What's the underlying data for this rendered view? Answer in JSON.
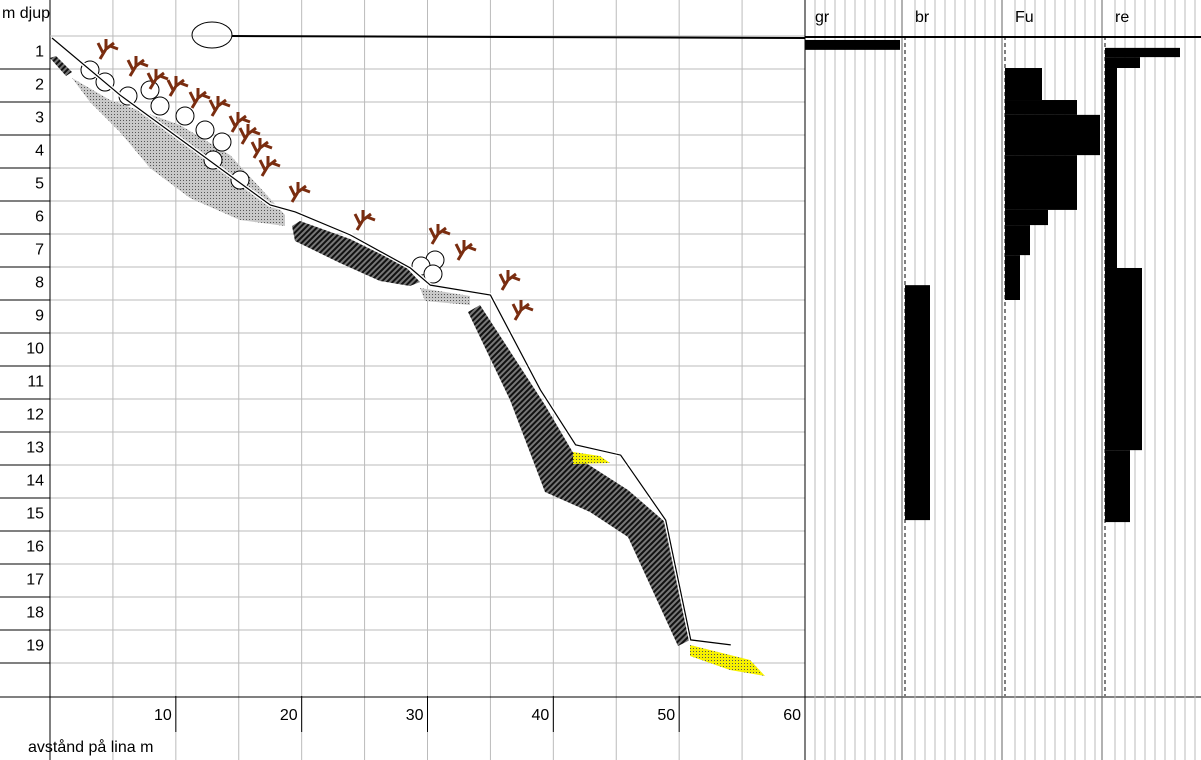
{
  "chart_data": {
    "type": "transect",
    "y_label": "m djup",
    "x_label": "avstånd på lina m",
    "xlim": [
      0,
      60
    ],
    "xticks": [
      10,
      20,
      30,
      40,
      50,
      60
    ],
    "ylim": [
      0,
      20
    ],
    "yticks": [
      1,
      2,
      3,
      4,
      5,
      6,
      7,
      8,
      9,
      10,
      11,
      12,
      13,
      14,
      15,
      16,
      17,
      18,
      19
    ],
    "grid": true,
    "profile": {
      "x": [
        0.16,
        5.57,
        17.5,
        19.49,
        23.87,
        28.64,
        30.23,
        35.0,
        38.98,
        41.77,
        45.35,
        48.93,
        50.92,
        54.1
      ],
      "y": [
        0.06,
        1.79,
        5.12,
        5.33,
        6.03,
        7.03,
        7.55,
        7.85,
        10.73,
        12.39,
        12.7,
        14.67,
        18.3,
        18.45
      ]
    },
    "panels": [
      {
        "name": "gr",
        "xlim": [
          0,
          10
        ],
        "segments": [
          {
            "top": 0.12,
            "bottom": 0.42,
            "value": 9.5
          }
        ]
      },
      {
        "name": "br",
        "xlim": [
          0,
          10
        ],
        "segments": [
          {
            "top": 7.55,
            "bottom": 14.67,
            "value": 2.5
          }
        ]
      },
      {
        "name": "Fu",
        "xlim": [
          0,
          10
        ],
        "segments": [
          {
            "top": 0.97,
            "bottom": 1.94,
            "value": 3.7
          },
          {
            "top": 1.94,
            "bottom": 2.39,
            "value": 7.2
          },
          {
            "top": 2.39,
            "bottom": 3.61,
            "value": 9.5
          },
          {
            "top": 3.61,
            "bottom": 5.27,
            "value": 7.2
          },
          {
            "top": 5.27,
            "bottom": 5.73,
            "value": 4.3
          },
          {
            "top": 5.73,
            "bottom": 6.64,
            "value": 2.5
          },
          {
            "top": 6.64,
            "bottom": 8.0,
            "value": 1.5
          }
        ]
      },
      {
        "name": "re",
        "xlim": [
          0,
          10
        ],
        "segments": [
          {
            "top": 0.36,
            "bottom": 0.64,
            "value": 7.5
          },
          {
            "top": 0.64,
            "bottom": 0.97,
            "value": 3.5
          },
          {
            "top": 0.97,
            "bottom": 7.03,
            "value": 1.2
          },
          {
            "top": 7.03,
            "bottom": 12.55,
            "value": 3.7
          },
          {
            "top": 12.55,
            "bottom": 14.73,
            "value": 2.5
          }
        ]
      }
    ]
  }
}
